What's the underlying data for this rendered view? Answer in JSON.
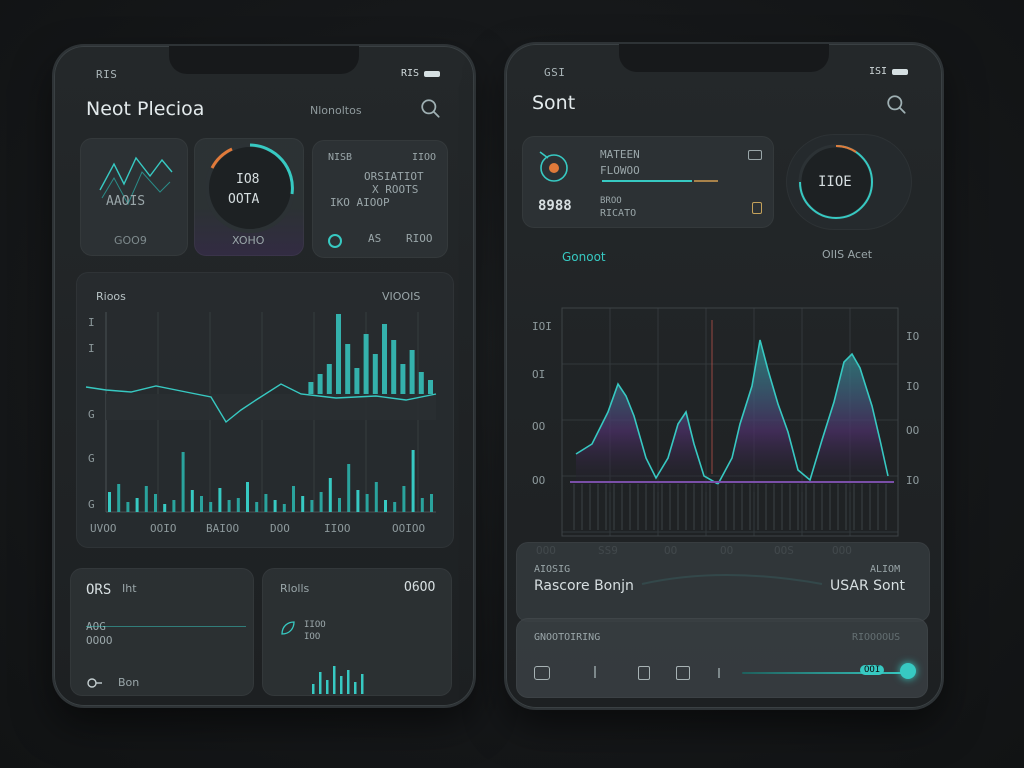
{
  "colors": {
    "accent": "#37c9c2",
    "accent_dark": "#1f8f8a",
    "purple": "#7a4fa8",
    "orange": "#e07a3a",
    "background": "#16181a"
  },
  "left_phone": {
    "status_time": "RIS",
    "status_signal": "RIS",
    "title": "Neot Plecioa",
    "subtitle": "Nlonoltos",
    "cards": {
      "sparkline": {
        "value": "AAOIS",
        "caption": "GOO9"
      },
      "gauge": {
        "line1": "IO8",
        "line2": "OOTA",
        "caption": "XOHO"
      },
      "stats": {
        "label_left": "NISB",
        "label_right": "IIOO",
        "row1": "ORSIATIOT",
        "row2": "X ROOTS",
        "row3": "IKO AIOOP",
        "footer_mid": "AS",
        "footer_right": "RIOO"
      }
    },
    "chart": {
      "tag": "Rioos",
      "right_label": "VIOOIS",
      "y_ticks_left": [
        "I",
        "I",
        "G",
        "G",
        "G"
      ],
      "x_ticks": [
        "UVOO",
        "OOIO",
        "BAIOO",
        "DOO",
        "IIOO",
        "OOIOO"
      ]
    },
    "bottom": {
      "card1": {
        "title": "ORS",
        "title2": "Iht",
        "row1": "AOG",
        "row2": "OOOO",
        "footer": "Bon"
      },
      "card2": {
        "title_left": "Rlolls",
        "title_right": "O6OO",
        "row1": "IIOO",
        "row2": "IOO"
      }
    }
  },
  "right_phone": {
    "status_time": "GSI",
    "status_signal": "ISI",
    "title": "Sont",
    "info_card": {
      "label1": "MATEEN",
      "label2": "FLOWOO",
      "value": "8988",
      "label3": "BROO",
      "label4": "RICATO"
    },
    "gauge": {
      "value": "IIOE"
    },
    "chart": {
      "title": "Gonoot",
      "right_label": "OIIS Acet",
      "y_ticks_left": [
        "IOI",
        "OI",
        "OO",
        "OO"
      ],
      "y_ticks_right": [
        "IO",
        "IO",
        "OO",
        "IO"
      ],
      "x_ticks": [
        "OOO",
        "SS9",
        "OO",
        "OO",
        "OOS",
        "OOO"
      ]
    },
    "panel": {
      "tag": "AIOSIG",
      "tag_right": "ALIOM",
      "title": "Rascore Bonjn",
      "value": "USAR Sont"
    },
    "player": {
      "label": "GNOOTOIRING",
      "label_right": "RIOOOOUS",
      "time": "OOI"
    }
  }
}
